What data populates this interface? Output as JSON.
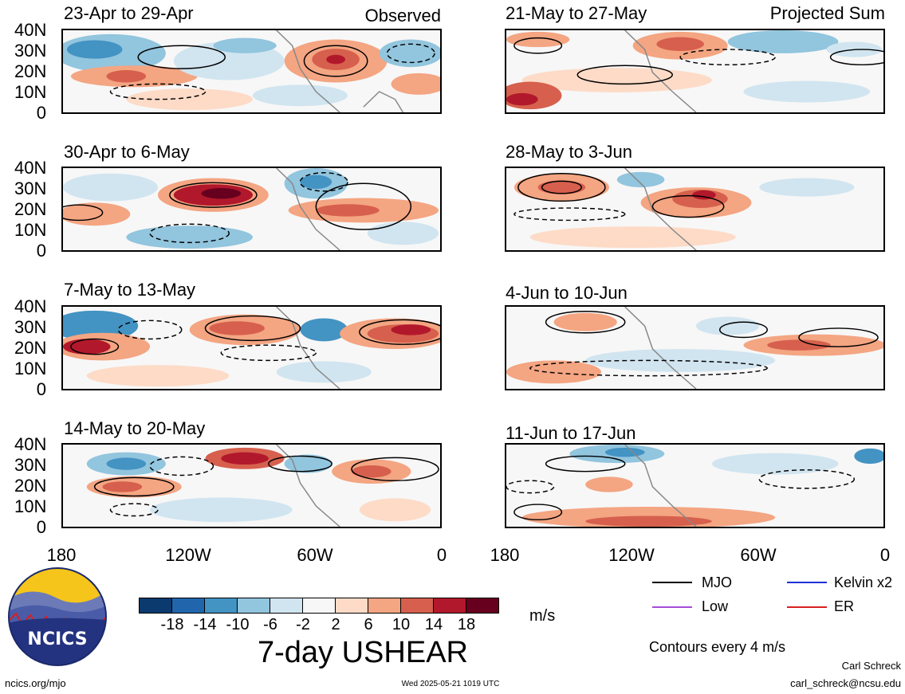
{
  "header": {
    "left_label": "Observed",
    "right_label": "Projected Sum"
  },
  "panels": [
    {
      "title": "23-Apr to 29-Apr",
      "column": "observed"
    },
    {
      "title": "30-Apr to 6-May",
      "column": "observed"
    },
    {
      "title": "7-May to 13-May",
      "column": "observed"
    },
    {
      "title": "14-May to 20-May",
      "column": "observed"
    },
    {
      "title": "21-May to 27-May",
      "column": "projected"
    },
    {
      "title": "28-May to 3-Jun",
      "column": "projected"
    },
    {
      "title": "4-Jun to 10-Jun",
      "column": "projected"
    },
    {
      "title": "11-Jun to 17-Jun",
      "column": "projected"
    }
  ],
  "axes": {
    "lat_ticks": [
      "40N",
      "30N",
      "20N",
      "10N",
      "0"
    ],
    "lon_ticks": [
      "180",
      "120W",
      "60W",
      "0"
    ]
  },
  "colorbar": {
    "labels": [
      "-18",
      "-14",
      "-10",
      "-6",
      "-2",
      "2",
      "6",
      "10",
      "14",
      "18"
    ],
    "units": "m/s",
    "colors": [
      "#0a3a6e",
      "#2166ac",
      "#4393c3",
      "#92c5de",
      "#d1e5f0",
      "#f7f7f7",
      "#fddbc7",
      "#f4a582",
      "#d6604d",
      "#b2182b",
      "#67001f"
    ]
  },
  "title": "7-day USHEAR",
  "legend": {
    "mjo": "MJO",
    "kelvin": "Kelvin x2",
    "low": "Low",
    "er": "ER",
    "contours_note": "Contours every 4 m/s",
    "colors": {
      "mjo": "#000000",
      "kelvin": "#1f2fd6",
      "low": "#a64cd9",
      "er": "#d62020"
    }
  },
  "logo": {
    "text": "NCICS"
  },
  "footer": {
    "url": "ncics.org/mjo",
    "timestamp": "Wed 2025-05-21 1019 UTC",
    "author": "Carl Schreck",
    "email": "carl_schreck@ncsu.edu"
  }
}
